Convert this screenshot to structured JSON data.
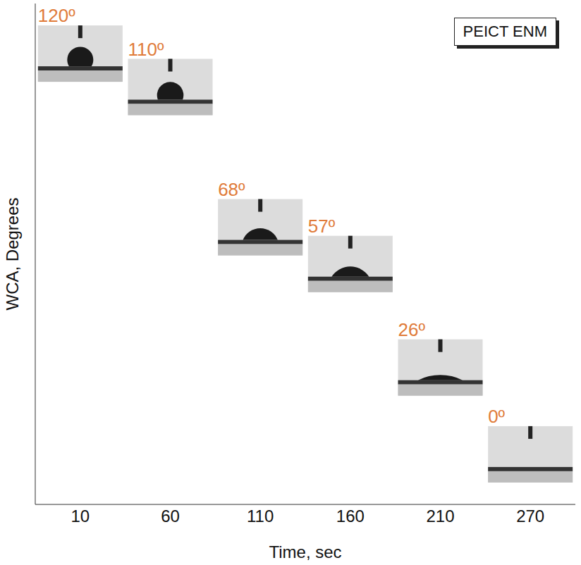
{
  "chart_data": {
    "type": "scatter",
    "x_label": "Time, sec",
    "y_label": "WCA, Degrees",
    "categories": [
      "10",
      "60",
      "110",
      "160",
      "210",
      "270"
    ],
    "series": [
      {
        "name": "PEICT ENM",
        "color": "#e07b39",
        "values": [
          120,
          110,
          68,
          57,
          26,
          0
        ],
        "value_labels": [
          "120º",
          "110º",
          "68º",
          "57º",
          "26º",
          "0º"
        ]
      }
    ],
    "ylim": [
      -15,
      135
    ],
    "yticks": [],
    "tick_labels": "x",
    "data_labels": true,
    "legend": "upper right",
    "marker": "droplet"
  }
}
